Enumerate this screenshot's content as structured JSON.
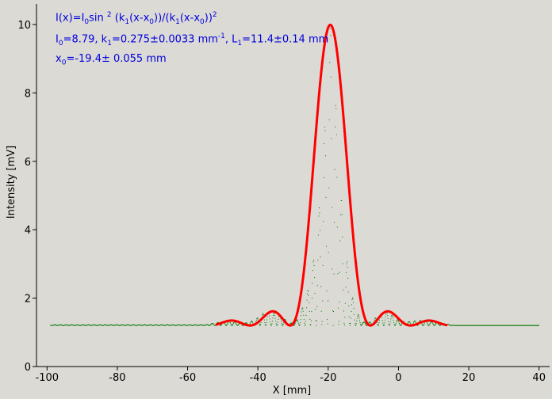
{
  "chart_data": {
    "type": "scatter",
    "xlabel": "X [mm]",
    "ylabel": "Intensity [mV]",
    "xlim": [
      -103,
      43
    ],
    "ylim": [
      0,
      10.6
    ],
    "xticks": [
      -100,
      -80,
      -60,
      -40,
      -20,
      0,
      20,
      40
    ],
    "yticks": [
      0,
      2,
      4,
      6,
      8,
      10
    ],
    "xtick_labels": [
      "-100",
      "-80",
      "-60",
      "-40",
      "-20",
      "0",
      "20",
      "40"
    ],
    "ytick_labels": [
      "0",
      "2",
      "4",
      "6",
      "8",
      "10"
    ],
    "grid": false,
    "annotation": {
      "line1": {
        "p1": "I(x)=I",
        "s1": "0",
        "p2": "sin ",
        "s2": "2",
        "p3": " (k",
        "s3": "1",
        "p4": "(x-x",
        "s4": "0",
        "p5": "))/(k",
        "s5": "1",
        "p6": "(x-x",
        "s6": "0",
        "p7": "))",
        "s7": "2"
      },
      "line2": {
        "p1": "I",
        "s1": "0",
        "p2": "=8.79,  k",
        "s2": "1",
        "p3": "=0.275±0.0033 mm",
        "s3": "-1",
        "p4": ",   L",
        "s4": "1",
        "p5": "=11.4±0.14 mm"
      },
      "line3": {
        "p1": "x",
        "s1": "0",
        "p2": "=-19.4±   0.055 mm"
      }
    },
    "series": [
      {
        "color": "#007700",
        "style": "dots",
        "x_range": [
          -99,
          40
        ],
        "baseline": 1.2,
        "oscillation_period": 1.6,
        "envelope_x": [
          -99,
          -55,
          -52,
          -48,
          -44,
          -41,
          -38,
          -34,
          -31,
          -29,
          -27,
          -25,
          -23,
          -21,
          -19.4,
          -18,
          -16,
          -14,
          -12,
          -10,
          -8,
          -5,
          -3,
          0,
          2,
          6,
          9,
          13,
          16,
          40
        ],
        "envelope_y": [
          1.22,
          1.22,
          1.28,
          1.33,
          1.26,
          1.35,
          1.6,
          1.55,
          1.25,
          1.35,
          1.8,
          2.5,
          4.0,
          7.0,
          10.0,
          8.0,
          4.5,
          2.4,
          1.6,
          1.3,
          1.3,
          1.55,
          1.6,
          1.35,
          1.3,
          1.35,
          1.32,
          1.25,
          1.2,
          1.2
        ]
      },
      {
        "color": "#ff0000",
        "style": "line",
        "function": "I0*(sin(k1*(x-x0))/(k1*(x-x0)))^2+offset",
        "I0": 8.79,
        "k1": 0.275,
        "x0": -19.4,
        "offset": 1.2,
        "x_range": [
          -52,
          14
        ]
      }
    ]
  }
}
